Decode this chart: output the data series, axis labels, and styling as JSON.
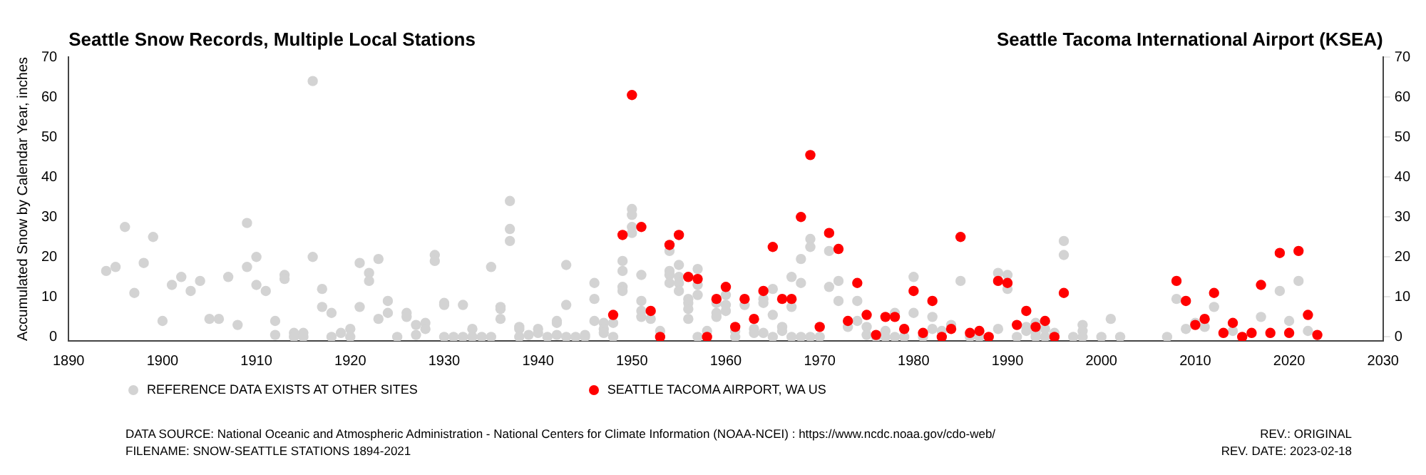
{
  "chart_data": {
    "type": "scatter",
    "title": "Seattle Snow Records, Multiple Local Stations",
    "subtitle": "Seattle Tacoma International Airport (KSEA)",
    "ylabel": "Accumulated Snow by Calendar Year, inches",
    "xlim": [
      1890,
      2030
    ],
    "xticks": [
      1890,
      1900,
      1910,
      1920,
      1930,
      1940,
      1950,
      1960,
      1970,
      1980,
      1990,
      2000,
      2010,
      2020,
      2030
    ],
    "ylim": [
      -1,
      70
    ],
    "yticks": [
      0,
      10,
      20,
      30,
      40,
      50,
      60,
      70
    ],
    "y2lim": [
      -1,
      70
    ],
    "y2ticks": [
      0,
      10,
      20,
      30,
      40,
      50,
      60,
      70
    ],
    "grid": false,
    "legend": "bottom",
    "marker": "circle",
    "series": [
      {
        "name": "REFERENCE DATA EXISTS AT OTHER SITES",
        "color": "#d3d3d3",
        "x": [
          1894,
          1895,
          1896,
          1897,
          1898,
          1899,
          1900,
          1901,
          1902,
          1903,
          1904,
          1905,
          1906,
          1907,
          1908,
          1909,
          1909,
          1910,
          1910,
          1911,
          1912,
          1912,
          1913,
          1913,
          1914,
          1914,
          1915,
          1915,
          1916,
          1916,
          1917,
          1917,
          1918,
          1918,
          1919,
          1920,
          1920,
          1921,
          1921,
          1922,
          1922,
          1923,
          1923,
          1924,
          1924,
          1925,
          1926,
          1926,
          1927,
          1927,
          1928,
          1928,
          1929,
          1929,
          1930,
          1930,
          1930,
          1931,
          1932,
          1932,
          1933,
          1933,
          1934,
          1935,
          1935,
          1936,
          1936,
          1936,
          1937,
          1937,
          1937,
          1938,
          1938,
          1938,
          1939,
          1940,
          1940,
          1941,
          1942,
          1942,
          1942,
          1943,
          1943,
          1943,
          1944,
          1945,
          1945,
          1946,
          1946,
          1946,
          1947,
          1947,
          1947,
          1948,
          1948,
          1949,
          1949,
          1949,
          1949,
          1950,
          1950,
          1950,
          1950,
          1951,
          1951,
          1951,
          1951,
          1952,
          1953,
          1954,
          1954,
          1954,
          1954,
          1955,
          1955,
          1955,
          1955,
          1956,
          1956,
          1956,
          1956,
          1957,
          1957,
          1957,
          1957,
          1958,
          1959,
          1959,
          1959,
          1960,
          1960,
          1960,
          1961,
          1961,
          1962,
          1963,
          1963,
          1964,
          1964,
          1964,
          1965,
          1965,
          1965,
          1966,
          1966,
          1967,
          1967,
          1967,
          1968,
          1968,
          1968,
          1969,
          1969,
          1969,
          1970,
          1971,
          1971,
          1972,
          1972,
          1973,
          1974,
          1974,
          1975,
          1975,
          1976,
          1977,
          1977,
          1978,
          1978,
          1979,
          1980,
          1980,
          1981,
          1982,
          1982,
          1983,
          1984,
          1985,
          1986,
          1987,
          1989,
          1989,
          1990,
          1990,
          1991,
          1992,
          1992,
          1993,
          1993,
          1993,
          1994,
          1994,
          1995,
          1996,
          1996,
          1997,
          1998,
          1998,
          1998,
          2000,
          2001,
          2002,
          2007,
          2008,
          2009,
          2010,
          2011,
          2012,
          2014,
          2017,
          2019,
          2020,
          2021,
          2022
        ],
        "values": [
          16.5,
          17.5,
          27.5,
          11,
          18.5,
          25,
          4,
          13,
          15,
          11.5,
          14,
          4.5,
          4.5,
          15,
          3,
          17.5,
          28.5,
          20,
          13,
          11.5,
          4,
          0.5,
          15.5,
          14.5,
          1,
          0,
          1,
          0,
          64,
          20,
          12,
          7.5,
          6,
          0,
          1,
          2,
          0,
          18.5,
          7.5,
          16,
          14,
          19.5,
          4.5,
          9,
          6,
          0,
          6,
          5,
          3,
          0.5,
          3.5,
          2,
          20.5,
          19,
          8.5,
          8,
          0,
          0,
          8,
          0,
          2,
          0,
          0,
          17.5,
          0,
          7.5,
          7,
          4.5,
          34,
          27,
          24,
          2.5,
          2,
          0,
          0.5,
          2,
          1,
          0,
          4,
          3.5,
          0.5,
          18,
          8,
          0,
          0,
          0.5,
          0,
          13.5,
          9.5,
          4,
          3.5,
          2,
          1,
          3.5,
          0,
          19,
          16.5,
          12.5,
          11.5,
          32,
          30.5,
          27.5,
          26,
          15.5,
          9,
          6.5,
          5,
          4.5,
          1.5,
          21.5,
          16.5,
          15.5,
          13.5,
          18,
          15,
          13.5,
          11.5,
          9.5,
          8.5,
          7,
          4.5,
          17,
          13,
          10.5,
          0,
          1.5,
          8.5,
          6,
          5,
          10.5,
          8,
          6.5,
          1.5,
          0,
          8,
          2,
          1,
          9.5,
          8.5,
          1,
          12,
          5.5,
          0,
          2.5,
          1.5,
          15,
          7.5,
          0,
          19.5,
          13.5,
          0,
          24.5,
          22.5,
          0,
          0,
          21.5,
          12.5,
          14,
          9,
          2.5,
          9,
          4,
          2.5,
          0.5,
          0,
          1.5,
          0,
          6,
          0,
          0,
          15,
          6,
          0,
          5,
          2,
          1.5,
          3,
          14,
          0,
          0,
          16,
          2,
          15.5,
          12,
          0,
          2.5,
          1.5,
          3.5,
          1,
          0,
          2,
          0,
          1,
          24,
          20.5,
          0,
          3,
          1.5,
          0,
          0,
          4.5,
          0,
          0,
          9.5,
          2,
          3.5,
          2.5,
          7.5,
          1.5,
          5,
          11.5,
          4,
          14,
          1.5
        ]
      },
      {
        "name": "SEATTLE TACOMA AIRPORT, WA US",
        "color": "#ff0000",
        "x": [
          1948,
          1949,
          1950,
          1951,
          1952,
          1953,
          1954,
          1955,
          1956,
          1957,
          1958,
          1959,
          1960,
          1961,
          1962,
          1963,
          1964,
          1965,
          1966,
          1967,
          1968,
          1969,
          1970,
          1971,
          1972,
          1973,
          1974,
          1975,
          1976,
          1977,
          1978,
          1979,
          1980,
          1981,
          1982,
          1983,
          1984,
          1985,
          1986,
          1987,
          1988,
          1989,
          1990,
          1991,
          1992,
          1993,
          1994,
          1995,
          1996,
          2008,
          2009,
          2010,
          2011,
          2012,
          2013,
          2014,
          2015,
          2016,
          2017,
          2018,
          2019,
          2020,
          2021,
          2022,
          2023
        ],
        "values": [
          5.5,
          25.5,
          60.5,
          27.5,
          6.5,
          0,
          23,
          25.5,
          15,
          14.5,
          0,
          9.5,
          12.5,
          2.5,
          9.5,
          4.5,
          11.5,
          22.5,
          9.5,
          9.5,
          30,
          45.5,
          2.5,
          26,
          22,
          4,
          13.5,
          5.5,
          0.5,
          5,
          5,
          2,
          11.5,
          1,
          9,
          0,
          2,
          25,
          1,
          1.5,
          0,
          14,
          13.5,
          3,
          6.5,
          2.5,
          4,
          0,
          11,
          14,
          9,
          3,
          4.5,
          11,
          1,
          3.5,
          0,
          1,
          13,
          1,
          21,
          1,
          21.5,
          5.5,
          0.5
        ]
      }
    ],
    "annotations": [
      "DATA SOURCE: National Oceanic and Atmospheric Administration - National Centers for Climate Information (NOAA-NCEI) : https://www.ncdc.noaa.gov/cdo-web/",
      "FILENAME: SNOW-SEATTLE STATIONS 1894-2021",
      "REV.: ORIGINAL",
      "REV. DATE: 2023-02-18"
    ]
  }
}
